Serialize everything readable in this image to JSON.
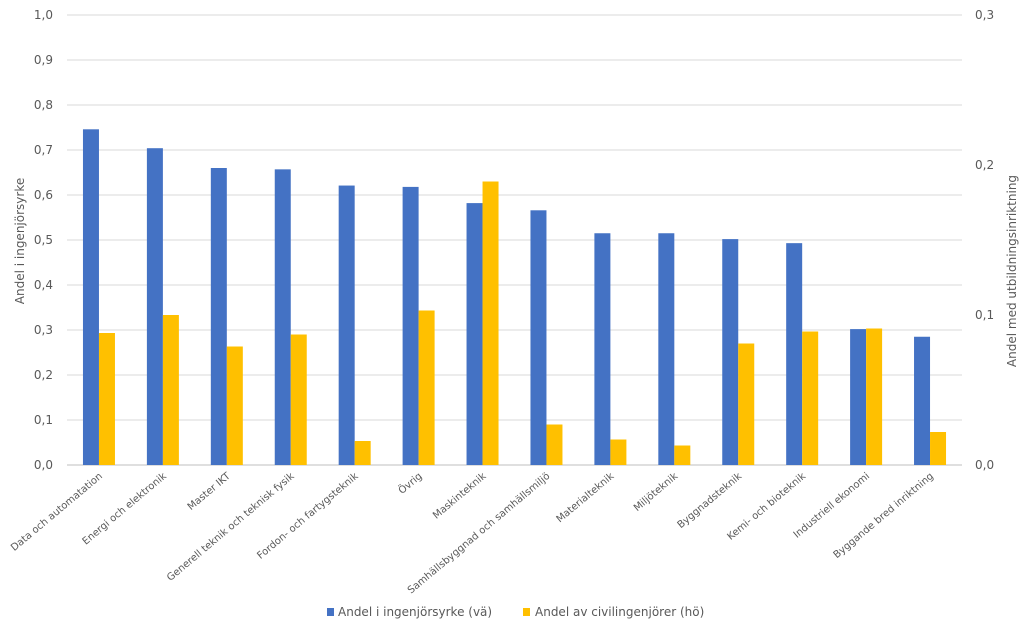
{
  "chart_data": {
    "type": "bar",
    "title": "",
    "categories": [
      "Data och automatation",
      "Energi och elektronik",
      "Master IKT",
      "Generell teknik och teknisk fysik",
      "Fordon- och fartygsteknik",
      "Övrig",
      "Maskinteknik",
      "Samhällsbyggnad och samhällsmiljö",
      "Materialteknik",
      "Miljöteknik",
      "Byggnadsteknik",
      "Kemi- och bioteknik",
      "Industriell ekonomi",
      "Byggande bred inriktning"
    ],
    "series": [
      {
        "name": "Andel i ingenjörsyrke (vä)",
        "axis": "left",
        "color": "#4472C4",
        "values": [
          0.746,
          0.704,
          0.66,
          0.657,
          0.621,
          0.618,
          0.582,
          0.566,
          0.515,
          0.515,
          0.502,
          0.493,
          0.302,
          0.285
        ]
      },
      {
        "name": "Andel av civilingenjörer (hö)",
        "axis": "right",
        "color": "#FFC000",
        "values": [
          0.088,
          0.1,
          0.079,
          0.087,
          0.016,
          0.103,
          0.189,
          0.027,
          0.017,
          0.013,
          0.081,
          0.089,
          0.091,
          0.022
        ]
      }
    ],
    "ylabel": "Andel i ingenjörsyrke",
    "ylabel_right": "Andel med utbildningsinriktning",
    "ylim": [
      0,
      1.0
    ],
    "ylim_right": [
      0,
      0.3
    ],
    "yticks": [
      "0,0",
      "0,1",
      "0,2",
      "0,3",
      "0,4",
      "0,5",
      "0,6",
      "0,7",
      "0,8",
      "0,9",
      "1,0"
    ],
    "yticks_right": [
      "0,0",
      "0,1",
      "0,2",
      "0,3"
    ],
    "grid": true,
    "legend_position": "bottom"
  }
}
